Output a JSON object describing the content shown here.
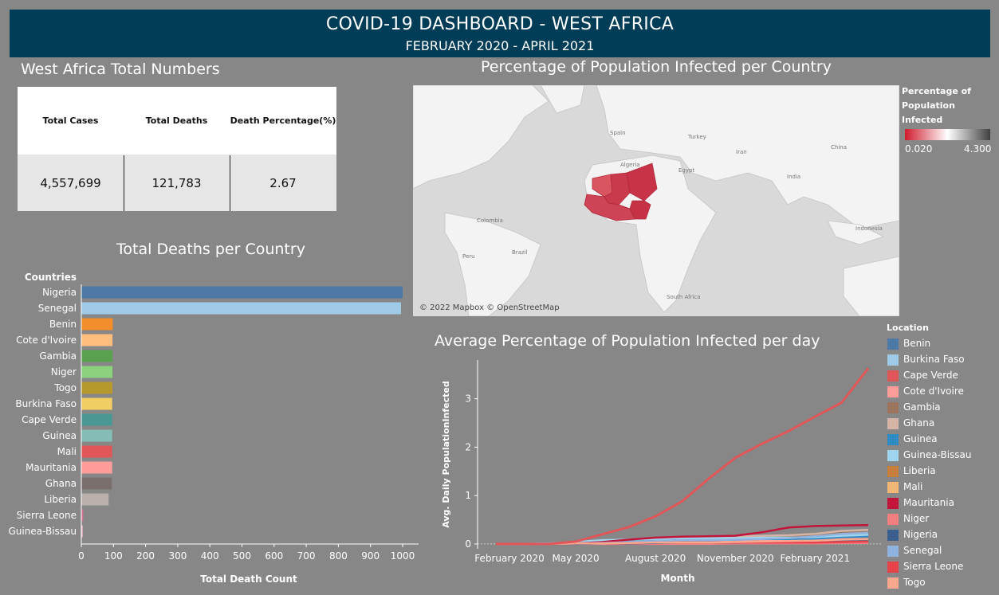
{
  "header": {
    "title": "COVID-19 DASHBOARD - WEST AFRICA",
    "subtitle": "FEBRUARY 2020 - APRIL 2021"
  },
  "totals": {
    "title": "West Africa Total Numbers",
    "columns": [
      "Total Cases",
      "Total Deaths",
      "Death Percentage(%)"
    ],
    "values": [
      "4,557,699",
      "121,783",
      "2.67"
    ]
  },
  "map": {
    "title": "Percentage of  Population Infected per Country",
    "attribution": "© 2022 Mapbox © OpenStreetMap",
    "legend_title_lines": [
      "Percentage  of",
      "Population",
      "Infected"
    ],
    "legend_min": "0.020",
    "legend_max": "4.300",
    "legend_colors": [
      "#d01c2e",
      "#ffffff",
      "#404040"
    ],
    "labels": [
      "Spain",
      "Turkey",
      "Algeria",
      "Egypt",
      "Iran",
      "China",
      "India",
      "Colombia",
      "Brazil",
      "Peru",
      "Indonesia",
      "South Africa"
    ]
  },
  "chart_data": [
    {
      "type": "bar",
      "title": "Total Deaths per Country",
      "ylabel": "Countries",
      "xlabel": "Total Death Count",
      "xlim": [
        0,
        1000
      ],
      "xticks": [
        "0",
        "100",
        "200",
        "300",
        "400",
        "500",
        "600",
        "700",
        "800",
        "900",
        "1000"
      ],
      "categories": [
        "Nigeria",
        "Senegal",
        "Benin",
        "Cote d'Ivoire",
        "Gambia",
        "Niger",
        "Togo",
        "Burkina Faso",
        "Cape Verde",
        "Guinea",
        "Mali",
        "Mauritania",
        "Ghana",
        "Liberia",
        "Sierra Leone",
        "Guinea-Bissau"
      ],
      "values": [
        1000,
        995,
        98,
        97,
        97,
        97,
        97,
        96,
        96,
        96,
        96,
        96,
        95,
        85,
        6,
        4
      ],
      "colors": [
        "#4e79a7",
        "#a0cbe8",
        "#f28e2b",
        "#ffbe7d",
        "#59a14f",
        "#8cd17d",
        "#b6992d",
        "#f1ce63",
        "#499894",
        "#86bcb6",
        "#e15759",
        "#ff9d9a",
        "#79706e",
        "#bab0ac",
        "#d37295",
        "#fabfd2"
      ]
    },
    {
      "type": "line",
      "title": "Average Percentage of Population Infected per day",
      "xlabel": "Month",
      "ylabel": "Avg. Daily PopulationInfected",
      "xticks": [
        "February 2020",
        "May 2020",
        "August 2020",
        "November 2020",
        "February 2021"
      ],
      "x": [
        "Feb 2020",
        "Mar 2020",
        "Apr 2020",
        "May 2020",
        "Jun 2020",
        "Jul 2020",
        "Aug 2020",
        "Sep 2020",
        "Oct 2020",
        "Nov 2020",
        "Dec 2020",
        "Jan 2021",
        "Feb 2021",
        "Mar 2021",
        "Apr 2021"
      ],
      "yticks": [
        "0",
        "1",
        "2",
        "3"
      ],
      "ylim": [
        -0.1,
        3.8
      ],
      "legend_title": "Location",
      "series": [
        {
          "name": "Benin",
          "color": "#4e79a7",
          "values": [
            0,
            0,
            0,
            0.01,
            0.01,
            0.02,
            0.03,
            0.03,
            0.03,
            0.03,
            0.04,
            0.05,
            0.06,
            0.06,
            0.07
          ]
        },
        {
          "name": "Burkina Faso",
          "color": "#a0cbe8",
          "values": [
            0,
            0,
            0.01,
            0.01,
            0.01,
            0.01,
            0.01,
            0.01,
            0.02,
            0.02,
            0.03,
            0.04,
            0.05,
            0.06,
            0.06
          ]
        },
        {
          "name": "Cape Verde",
          "color": "#e15759",
          "values": [
            0,
            0,
            0,
            0.05,
            0.2,
            0.35,
            0.57,
            0.88,
            1.35,
            1.78,
            2.07,
            2.33,
            2.63,
            2.92,
            3.63
          ]
        },
        {
          "name": "Cote d'Ivoire",
          "color": "#ff9d9a",
          "values": [
            0,
            0,
            0,
            0.01,
            0.02,
            0.04,
            0.06,
            0.07,
            0.07,
            0.08,
            0.08,
            0.09,
            0.11,
            0.13,
            0.16
          ]
        },
        {
          "name": "Gambia",
          "color": "#9c755f",
          "values": [
            0,
            0,
            0,
            0,
            0,
            0.01,
            0.06,
            0.14,
            0.15,
            0.15,
            0.16,
            0.16,
            0.19,
            0.23,
            0.24
          ]
        },
        {
          "name": "Ghana",
          "color": "#d7b5a6",
          "values": [
            0,
            0,
            0,
            0.01,
            0.03,
            0.07,
            0.11,
            0.13,
            0.15,
            0.16,
            0.17,
            0.18,
            0.21,
            0.27,
            0.29
          ]
        },
        {
          "name": "Guinea",
          "color": "#2f8ac4",
          "values": [
            0,
            0,
            0.01,
            0.02,
            0.03,
            0.05,
            0.07,
            0.08,
            0.08,
            0.09,
            0.1,
            0.1,
            0.11,
            0.14,
            0.16
          ]
        },
        {
          "name": "Guinea-Bissau",
          "color": "#a0d5f0",
          "values": [
            0,
            0,
            0.01,
            0.04,
            0.08,
            0.09,
            0.1,
            0.12,
            0.12,
            0.12,
            0.13,
            0.13,
            0.14,
            0.17,
            0.19
          ]
        },
        {
          "name": "Liberia",
          "color": "#c87e3c",
          "values": [
            0,
            0,
            0,
            0.01,
            0.01,
            0.02,
            0.03,
            0.03,
            0.03,
            0.03,
            0.04,
            0.04,
            0.04,
            0.04,
            0.04
          ]
        },
        {
          "name": "Mali",
          "color": "#f1b575",
          "values": [
            0,
            0,
            0,
            0.01,
            0.01,
            0.01,
            0.01,
            0.02,
            0.02,
            0.02,
            0.03,
            0.04,
            0.04,
            0.05,
            0.06
          ]
        },
        {
          "name": "Mauritania",
          "color": "#c3143a",
          "values": [
            0,
            0,
            0,
            0.01,
            0.04,
            0.09,
            0.13,
            0.15,
            0.16,
            0.17,
            0.24,
            0.34,
            0.37,
            0.38,
            0.39
          ]
        },
        {
          "name": "Niger",
          "color": "#f08080",
          "values": [
            0,
            0,
            0,
            0,
            0,
            0,
            0,
            0,
            0,
            0.01,
            0.01,
            0.01,
            0.01,
            0.02,
            0.02
          ]
        },
        {
          "name": "Nigeria",
          "color": "#3c5e91",
          "values": [
            0,
            0,
            0,
            0,
            0.01,
            0.01,
            0.02,
            0.03,
            0.03,
            0.03,
            0.04,
            0.05,
            0.07,
            0.08,
            0.08
          ]
        },
        {
          "name": "Senegal",
          "color": "#8fb3de",
          "values": [
            0,
            0,
            0,
            0.01,
            0.02,
            0.04,
            0.06,
            0.08,
            0.08,
            0.09,
            0.1,
            0.12,
            0.16,
            0.21,
            0.23
          ]
        },
        {
          "name": "Sierra Leone",
          "color": "#e8414b",
          "values": [
            0,
            0,
            0,
            0.01,
            0.01,
            0.02,
            0.03,
            0.03,
            0.03,
            0.03,
            0.03,
            0.03,
            0.03,
            0.04,
            0.05
          ]
        },
        {
          "name": "Togo",
          "color": "#f8a88e",
          "values": [
            0,
            0,
            0,
            0.01,
            0.01,
            0.02,
            0.03,
            0.03,
            0.03,
            0.04,
            0.05,
            0.06,
            0.07,
            0.09,
            0.1
          ]
        }
      ]
    }
  ]
}
